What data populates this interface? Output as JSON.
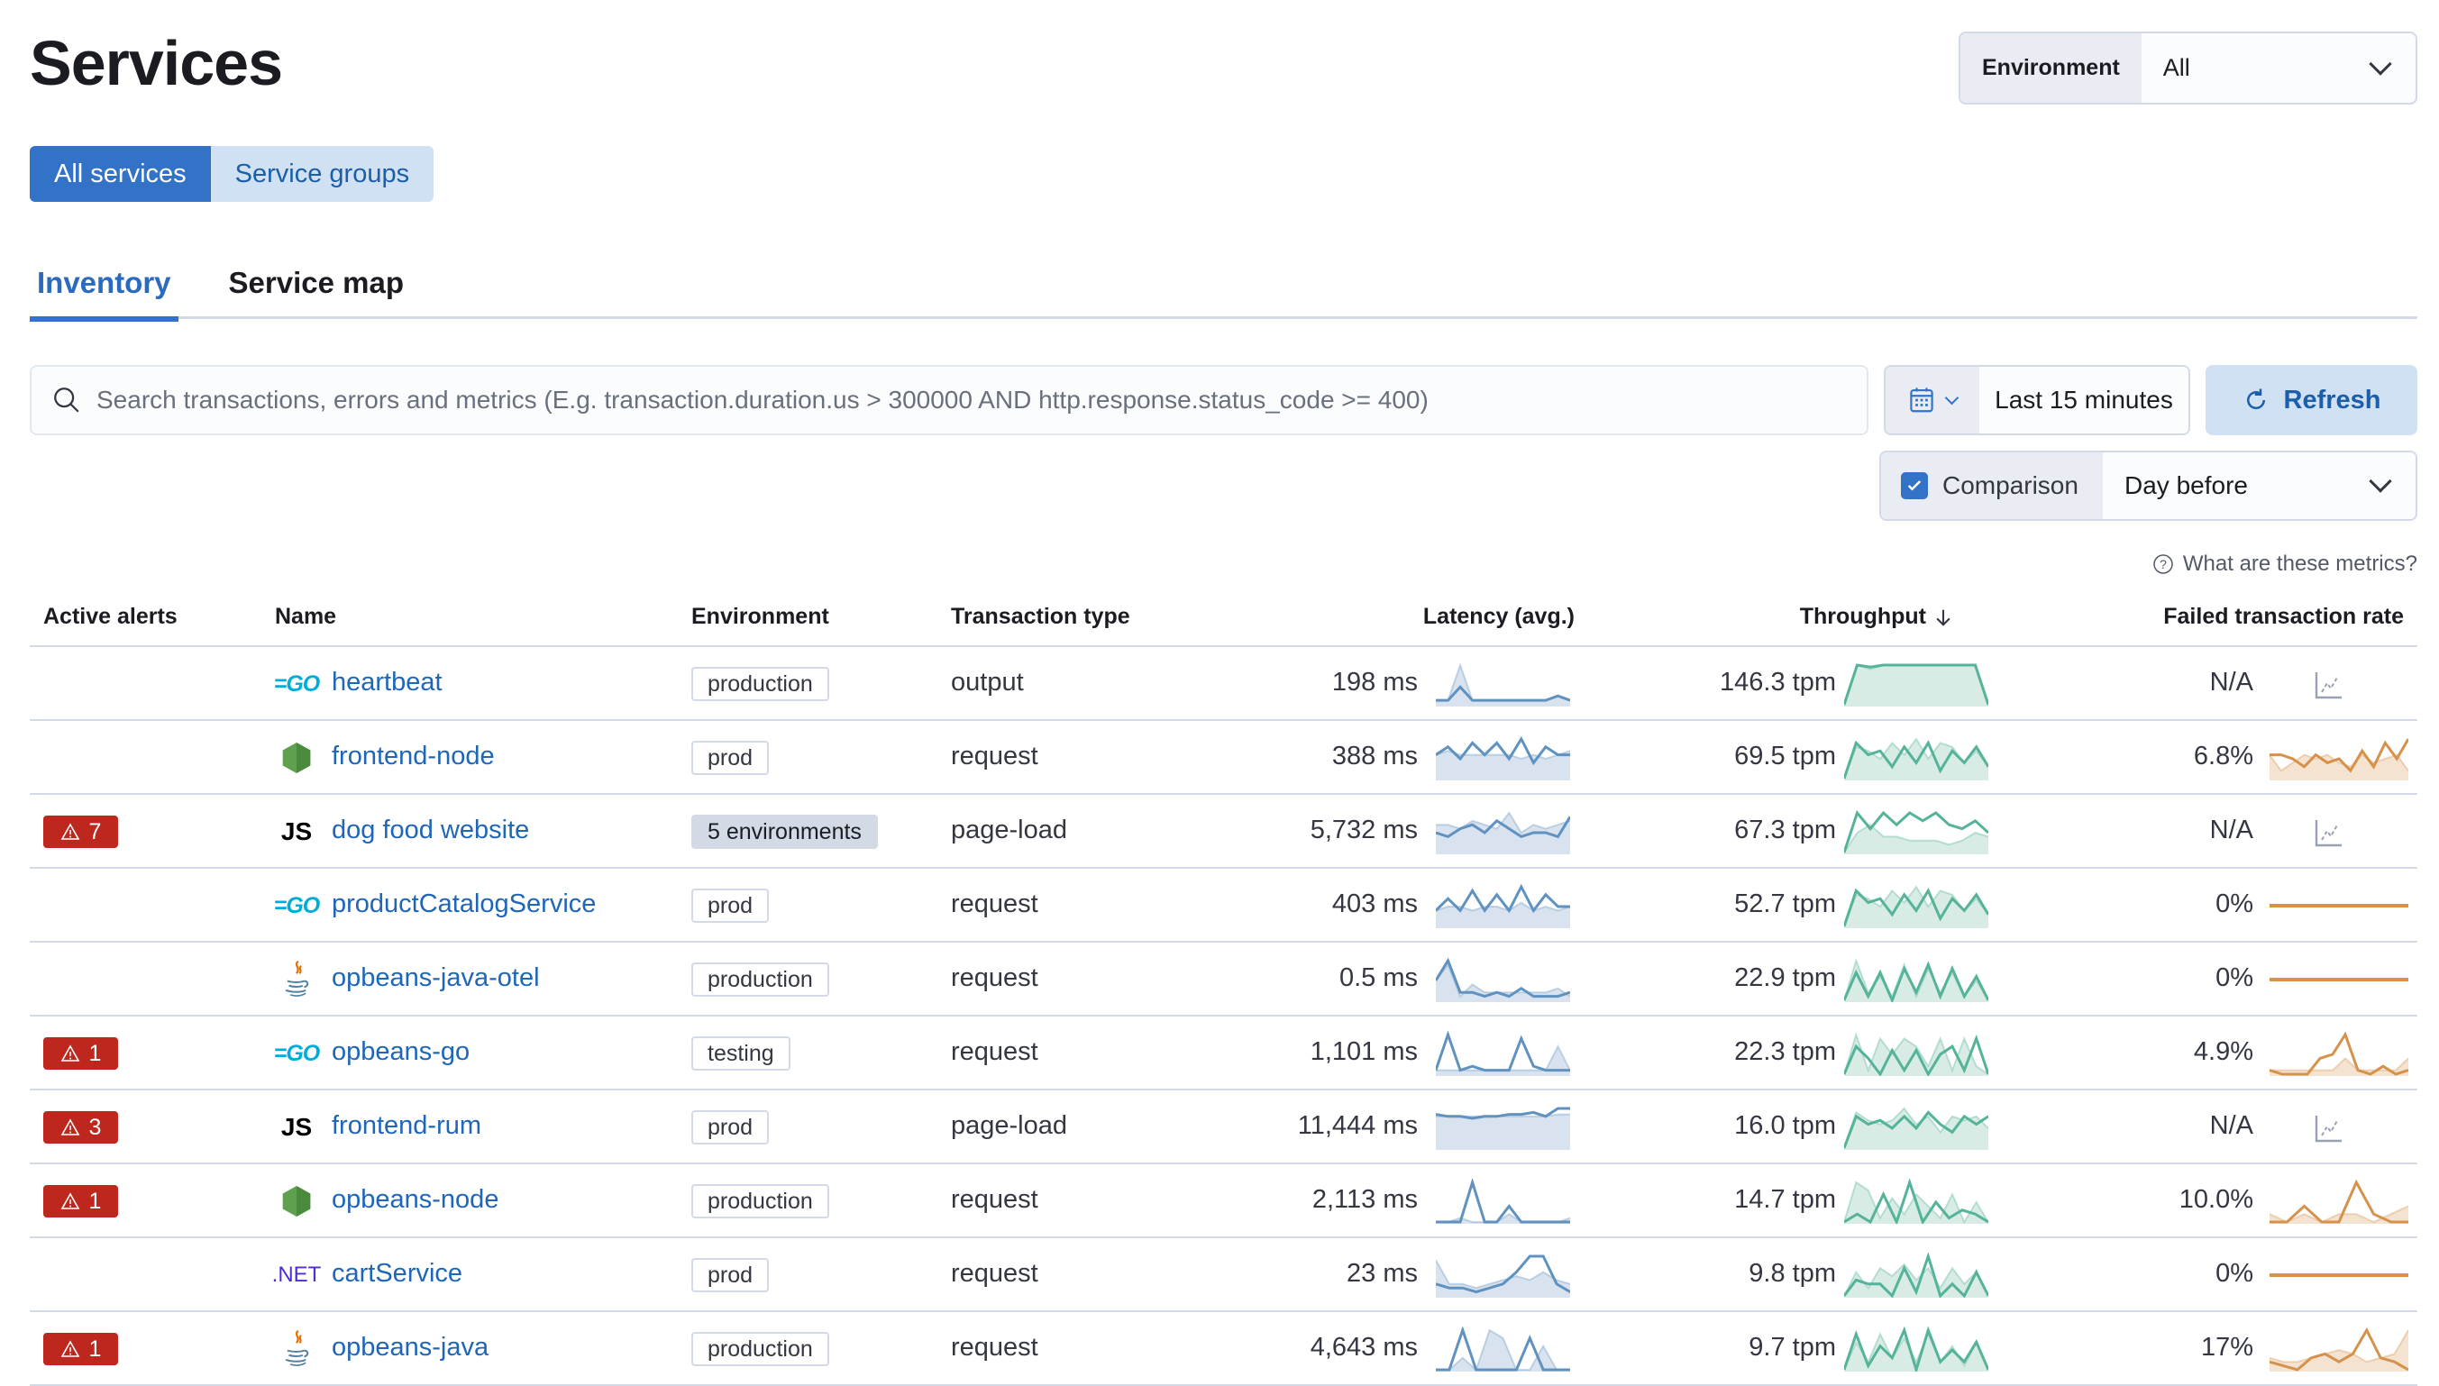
{
  "header": {
    "title": "Services",
    "environment_label": "Environment",
    "environment_value": "All"
  },
  "view_buttons": [
    {
      "label": "All services",
      "selected": true
    },
    {
      "label": "Service groups",
      "selected": false
    }
  ],
  "tabs": [
    {
      "label": "Inventory",
      "selected": true
    },
    {
      "label": "Service map",
      "selected": false
    }
  ],
  "search": {
    "placeholder": "Search transactions, errors and metrics (E.g. transaction.duration.us > 300000 AND http.response.status_code >= 400)",
    "value": ""
  },
  "time": {
    "range": "Last 15 minutes",
    "refresh_label": "Refresh"
  },
  "comparison": {
    "label": "Comparison",
    "checked": true,
    "value": "Day before"
  },
  "metrics_help": "What are these metrics?",
  "colors": {
    "accent": "#3272c7",
    "link": "#1f66b8",
    "alert": "#bd271e",
    "latency": "#6092c0",
    "throughput": "#54b399",
    "failed": "#d6914a"
  },
  "table": {
    "headers": {
      "alerts": "Active alerts",
      "name": "Name",
      "environment": "Environment",
      "type": "Transaction type",
      "latency": "Latency (avg.)",
      "throughput": "Throughput",
      "failed": "Failed transaction rate"
    },
    "sort": {
      "column": "throughput",
      "direction": "descending"
    },
    "rows": [
      {
        "alerts": "",
        "icon": "go",
        "name": "heartbeat",
        "env": "production",
        "env_multi": false,
        "type": "output",
        "latency": "198 ms",
        "throughput": "146.3 tpm",
        "failed": "N/A",
        "lat_s": [
          1,
          1,
          4,
          1,
          1,
          1,
          1,
          1,
          1,
          1,
          2,
          1
        ],
        "lat_c": [
          1,
          1,
          9,
          1,
          1,
          1,
          1,
          1,
          1,
          1,
          2,
          1
        ],
        "thr_s": [
          0,
          10,
          9.5,
          10,
          10,
          10,
          10,
          10,
          10,
          10,
          10,
          0
        ],
        "thr_c": [
          0,
          10,
          9,
          10,
          10,
          10,
          10,
          10,
          10,
          10,
          10,
          0
        ],
        "fail_s": null,
        "fail_c": null
      },
      {
        "alerts": "",
        "icon": "node",
        "name": "frontend-node",
        "env": "prod",
        "env_multi": false,
        "type": "request",
        "latency": "388 ms",
        "throughput": "69.5 tpm",
        "failed": "6.8%",
        "lat_s": [
          6,
          8,
          5,
          9,
          6,
          9,
          5,
          10,
          4,
          8,
          6,
          6
        ],
        "lat_c": [
          6,
          7,
          6,
          6,
          6,
          6,
          6,
          5,
          6,
          5,
          6,
          7
        ],
        "thr_s": [
          0,
          9,
          6,
          7,
          3,
          8,
          4,
          9,
          2,
          7,
          4,
          8,
          3
        ],
        "thr_c": [
          0,
          8,
          7,
          5,
          9,
          6,
          10,
          5,
          9,
          8,
          4,
          7,
          3
        ],
        "fail_s": [
          6,
          6,
          5,
          3,
          6,
          4,
          5,
          2,
          7,
          3,
          9,
          5,
          10
        ],
        "fail_c": [
          6,
          2,
          4,
          6,
          5,
          6,
          4,
          3,
          6,
          4,
          5,
          6,
          2
        ]
      },
      {
        "alerts": "7",
        "icon": "js",
        "name": "dog food website",
        "env": "5 environments",
        "env_multi": true,
        "type": "page-load",
        "latency": "5,732 ms",
        "throughput": "67.3 tpm",
        "failed": "N/A",
        "lat_s": [
          5,
          4,
          6,
          7,
          5,
          8,
          6,
          4,
          5,
          5,
          4,
          9
        ],
        "lat_c": [
          7,
          7,
          6,
          8,
          7,
          6,
          10,
          5,
          7,
          6,
          7,
          8
        ],
        "thr_s": [
          0,
          10,
          6,
          10,
          7,
          10,
          8,
          10,
          7,
          6,
          8,
          5
        ],
        "thr_c": [
          0,
          5,
          7,
          4,
          4,
          3,
          3,
          3,
          2,
          3,
          5,
          4
        ],
        "fail_s": null,
        "fail_c": null
      },
      {
        "alerts": "",
        "icon": "go",
        "name": "productCatalogService",
        "env": "prod",
        "env_multi": false,
        "type": "request",
        "latency": "403 ms",
        "throughput": "52.7 tpm",
        "failed": "0%",
        "lat_s": [
          4,
          7,
          4,
          9,
          4,
          8,
          4,
          10,
          4,
          8,
          5,
          5
        ],
        "lat_c": [
          4,
          5,
          5,
          4,
          5,
          5,
          4,
          6,
          4,
          5,
          4,
          5
        ],
        "thr_s": [
          0,
          9,
          6,
          7,
          3,
          8,
          4,
          9,
          2,
          7,
          4,
          8,
          3
        ],
        "thr_c": [
          0,
          8,
          7,
          5,
          9,
          6,
          10,
          5,
          9,
          8,
          4,
          7,
          3
        ],
        "fail_s": [
          0,
          0
        ],
        "fail_c": [
          0,
          0
        ]
      },
      {
        "alerts": "",
        "icon": "java",
        "name": "opbeans-java-otel",
        "env": "production",
        "env_multi": false,
        "type": "request",
        "latency": "0.5 ms",
        "throughput": "22.9 tpm",
        "failed": "0%",
        "lat_s": [
          5,
          10,
          2,
          2,
          1,
          2,
          1,
          3,
          1,
          1,
          1,
          2
        ],
        "lat_c": [
          5,
          9,
          1,
          4,
          2,
          2,
          2,
          2,
          2,
          2,
          3,
          1
        ],
        "thr_s": [
          0,
          7,
          1,
          7,
          0,
          8,
          2,
          9,
          1,
          8,
          1,
          6,
          0
        ],
        "thr_c": [
          0,
          10,
          2,
          6,
          1,
          9,
          1,
          8,
          2,
          7,
          1,
          5,
          0
        ],
        "fail_s": [
          0,
          0
        ],
        "fail_c": [
          0,
          0
        ]
      },
      {
        "alerts": "1",
        "icon": "go",
        "name": "opbeans-go",
        "env": "testing",
        "env_multi": false,
        "type": "request",
        "latency": "1,101 ms",
        "throughput": "22.3 tpm",
        "failed": "4.9%",
        "lat_s": [
          1,
          10,
          1,
          2,
          1,
          1,
          1,
          9,
          2,
          1,
          1,
          1
        ],
        "lat_c": [
          1,
          1,
          1,
          1,
          1,
          1,
          1,
          1,
          1,
          1,
          7,
          1
        ],
        "thr_s": [
          0,
          7,
          4,
          0,
          6,
          1,
          6,
          0,
          5,
          7,
          1,
          9,
          0
        ],
        "thr_c": [
          0,
          10,
          1,
          9,
          5,
          9,
          7,
          2,
          9,
          1,
          9,
          2,
          0
        ],
        "fail_s": [
          1,
          0,
          0,
          0,
          4,
          5,
          10,
          1,
          0,
          2,
          0,
          1
        ],
        "fail_c": [
          1,
          1,
          1,
          1,
          1,
          1,
          4,
          1,
          1,
          1,
          1,
          4
        ]
      },
      {
        "alerts": "3",
        "icon": "js",
        "name": "frontend-rum",
        "env": "prod",
        "env_multi": false,
        "type": "page-load",
        "latency": "11,444 ms",
        "throughput": "16.0 tpm",
        "failed": "N/A",
        "lat_s": [
          8.5,
          8,
          8,
          7.5,
          8,
          8,
          8.5,
          8.5,
          9,
          8,
          10,
          10
        ],
        "lat_c": [
          8,
          8,
          8,
          8,
          8,
          8,
          8,
          8,
          8,
          8,
          8.5,
          8.5
        ],
        "thr_s": [
          0,
          8,
          6,
          7,
          5,
          8,
          5,
          9,
          6,
          4,
          8,
          6,
          8
        ],
        "thr_c": [
          0,
          9,
          7,
          6,
          7,
          10,
          6,
          8,
          4,
          8,
          7,
          8,
          5
        ],
        "fail_s": null,
        "fail_c": null
      },
      {
        "alerts": "1",
        "icon": "node",
        "name": "opbeans-node",
        "env": "production",
        "env_multi": false,
        "type": "request",
        "latency": "2,113 ms",
        "throughput": "14.7 tpm",
        "failed": "10.0%",
        "lat_s": [
          0,
          0,
          0,
          10,
          0,
          0,
          4,
          0,
          0,
          0,
          0,
          0
        ],
        "lat_c": [
          0,
          0,
          1,
          0,
          0,
          0,
          2,
          0,
          0,
          0,
          0,
          1
        ],
        "thr_s": [
          0,
          2,
          0,
          7,
          0,
          10,
          0,
          5,
          1,
          3,
          2,
          0
        ],
        "thr_c": [
          0,
          10,
          8,
          1,
          6,
          2,
          7,
          4,
          1,
          7,
          0,
          5,
          0
        ],
        "fail_s": [
          0,
          0,
          2,
          0,
          0,
          5,
          1,
          0,
          0
        ],
        "fail_c": [
          1,
          0,
          1,
          0,
          1,
          1,
          0,
          1,
          2
        ]
      },
      {
        "alerts": "",
        "icon": "dotnet",
        "name": "cartService",
        "env": "prod",
        "env_multi": false,
        "type": "request",
        "latency": "23 ms",
        "throughput": "9.8 tpm",
        "failed": "0%",
        "lat_s": [
          3,
          2,
          2,
          1,
          2,
          3,
          6,
          10,
          10,
          3,
          1
        ],
        "lat_c": [
          9,
          3,
          3,
          2,
          3,
          4,
          5,
          4,
          6,
          4,
          3
        ],
        "thr_s": [
          0,
          4,
          3,
          3,
          0,
          7,
          1,
          10,
          0,
          3,
          0,
          6,
          0
        ],
        "thr_c": [
          0,
          6,
          2,
          7,
          5,
          8,
          4,
          7,
          2,
          7,
          3,
          6,
          0
        ],
        "fail_s": [
          0,
          0
        ],
        "fail_c": [
          0,
          0
        ]
      },
      {
        "alerts": "1",
        "icon": "java",
        "name": "opbeans-java",
        "env": "production",
        "env_multi": false,
        "type": "request",
        "latency": "4,643 ms",
        "throughput": "9.7 tpm",
        "failed": "17%",
        "lat_s": [
          0,
          0,
          10,
          0,
          0,
          0,
          0,
          8,
          0,
          0,
          0
        ],
        "lat_c": [
          0,
          0,
          3,
          0,
          10,
          8,
          0,
          0,
          6,
          0,
          0
        ],
        "thr_s": [
          0,
          9,
          1,
          6,
          3,
          10,
          0,
          10,
          2,
          5,
          2,
          7,
          0
        ],
        "thr_c": [
          0,
          7,
          2,
          9,
          3,
          8,
          2,
          9,
          2,
          6,
          1,
          7,
          0
        ],
        "fail_s": [
          2,
          1,
          0,
          3,
          4,
          2,
          4,
          10,
          3,
          2,
          0
        ],
        "fail_c": [
          3,
          2,
          2,
          3,
          4,
          5,
          4,
          2,
          3,
          4,
          10
        ]
      }
    ]
  }
}
